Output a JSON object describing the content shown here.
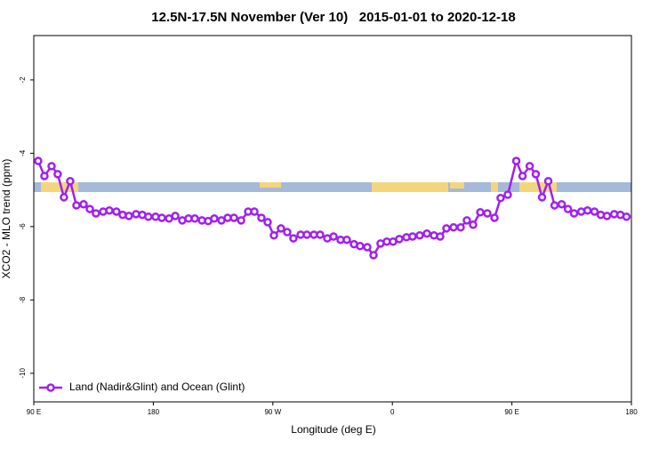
{
  "chart_data": {
    "type": "line",
    "title": "12.5N-17.5N November (Ver 10)   2015-01-01 to 2020-12-18",
    "x_label": "Longitude (deg E)",
    "y_label": "XCO2 - MLO trend (ppm)",
    "xlim": [
      90,
      540
    ],
    "xticks": [
      {
        "value": 90,
        "label": "90 E"
      },
      180,
      {
        "value": 270,
        "label": "90 W"
      },
      {
        "value": 360,
        "label": "0"
      },
      {
        "value": 450,
        "label": "90 E"
      },
      {
        "value": 540,
        "label": "180"
      }
    ],
    "ylim": [
      -10.78,
      -0.79
    ],
    "yticks": [
      -2,
      -4,
      -6,
      -8,
      -10
    ],
    "legend": "bottom-left",
    "series": [
      {
        "name": "Land (Nadir&Glint) and Ocean (Glint)",
        "color": "#a020f0",
        "x": [
          93.3,
          98.0,
          103.4,
          108.0,
          112.7,
          117.4,
          122.1,
          127.5,
          132.2,
          136.8,
          142.2,
          146.9,
          152.2,
          156.9,
          161.6,
          167.0,
          171.7,
          176.3,
          181.7,
          186.4,
          191.8,
          196.5,
          201.8,
          206.5,
          211.2,
          216.6,
          221.3,
          225.9,
          231.3,
          236.0,
          240.7,
          246.1,
          251.4,
          256.1,
          261.4,
          266.1,
          270.8,
          276.1,
          280.8,
          285.5,
          290.9,
          295.6,
          300.9,
          305.6,
          311.0,
          315.7,
          321.0,
          325.7,
          331.1,
          335.7,
          341.1,
          345.8,
          351.1,
          355.8,
          360.5,
          365.2,
          370.6,
          375.2,
          380.6,
          386.0,
          391.3,
          396.0,
          400.7,
          406.1,
          411.4,
          416.1,
          420.8,
          426.2,
          431.5,
          436.9,
          441.5,
          446.9,
          453.3,
          458.0,
          463.4,
          468.0,
          472.7,
          477.4,
          482.1,
          487.5,
          492.2,
          496.8,
          502.2,
          506.9,
          512.2,
          516.9,
          521.6,
          527.0,
          531.7,
          536.3
        ],
        "values": [
          -4.21,
          -4.62,
          -4.35,
          -4.57,
          -5.2,
          -4.76,
          -5.42,
          -5.39,
          -5.52,
          -5.64,
          -5.59,
          -5.56,
          -5.59,
          -5.68,
          -5.71,
          -5.66,
          -5.68,
          -5.73,
          -5.73,
          -5.76,
          -5.78,
          -5.71,
          -5.83,
          -5.78,
          -5.78,
          -5.83,
          -5.85,
          -5.78,
          -5.83,
          -5.76,
          -5.76,
          -5.83,
          -5.59,
          -5.59,
          -5.76,
          -5.88,
          -6.24,
          -6.05,
          -6.15,
          -6.32,
          -6.22,
          -6.22,
          -6.22,
          -6.22,
          -6.32,
          -6.27,
          -6.36,
          -6.36,
          -6.48,
          -6.53,
          -6.56,
          -6.78,
          -6.46,
          -6.41,
          -6.41,
          -6.34,
          -6.29,
          -6.27,
          -6.24,
          -6.19,
          -6.24,
          -6.27,
          -6.05,
          -6.02,
          -6.02,
          -5.83,
          -5.95,
          -5.61,
          -5.64,
          -5.76,
          -5.22,
          -5.13,
          -4.21,
          -4.62,
          -4.35,
          -4.57,
          -5.2,
          -4.76,
          -5.42,
          -5.39,
          -5.52,
          -5.64,
          -5.59,
          -5.56,
          -5.59,
          -5.68,
          -5.71,
          -5.66,
          -5.68,
          -5.73
        ]
      }
    ]
  }
}
